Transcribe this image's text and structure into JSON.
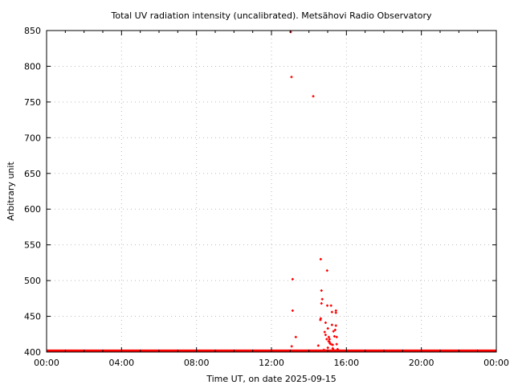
{
  "chart_data": {
    "type": "scatter",
    "title": "Total UV radiation intensity (uncalibrated). Metsähovi Radio Observatory",
    "xlabel": "Time UT, on date 2025-09-15",
    "ylabel": "Arbitrary unit",
    "xlim": [
      0,
      24
    ],
    "ylim": [
      400,
      850
    ],
    "x_units": "hours UT",
    "x_ticks": [
      0,
      4,
      8,
      12,
      16,
      20,
      24
    ],
    "x_tick_labels": [
      "00:00",
      "04:00",
      "08:00",
      "12:00",
      "16:00",
      "20:00",
      "00:00"
    ],
    "y_ticks": [
      400,
      450,
      500,
      550,
      600,
      650,
      700,
      750,
      800,
      850
    ],
    "y_tick_labels": [
      "400",
      "450",
      "500",
      "550",
      "600",
      "650",
      "700",
      "750",
      "800",
      "850"
    ],
    "grid": true,
    "color": "#ff0000",
    "baseline": {
      "value": 401.5,
      "from": 0,
      "to": 24
    },
    "points": [
      [
        13.03,
        848
      ],
      [
        13.07,
        785
      ],
      [
        14.23,
        758
      ],
      [
        14.63,
        530
      ],
      [
        14.97,
        514
      ],
      [
        13.13,
        502
      ],
      [
        14.67,
        486
      ],
      [
        14.71,
        474
      ],
      [
        14.67,
        468
      ],
      [
        14.98,
        465
      ],
      [
        15.18,
        465
      ],
      [
        13.13,
        458
      ],
      [
        15.23,
        456
      ],
      [
        15.44,
        455
      ],
      [
        15.44,
        458
      ],
      [
        14.61,
        445
      ],
      [
        14.63,
        447
      ],
      [
        14.89,
        441
      ],
      [
        15.23,
        438
      ],
      [
        15.44,
        437
      ],
      [
        15.01,
        433
      ],
      [
        15.4,
        431
      ],
      [
        14.84,
        428
      ],
      [
        15.31,
        429
      ],
      [
        13.3,
        421
      ],
      [
        15.06,
        421
      ],
      [
        15.48,
        421
      ],
      [
        15.36,
        422
      ],
      [
        15.1,
        418
      ],
      [
        14.89,
        424
      ],
      [
        15.1,
        414
      ],
      [
        13.08,
        408
      ],
      [
        14.5,
        409
      ],
      [
        15.12,
        412
      ],
      [
        15.18,
        411
      ],
      [
        15.27,
        410
      ],
      [
        15.48,
        411
      ],
      [
        15.01,
        406
      ],
      [
        15.27,
        405
      ],
      [
        14.8,
        403
      ],
      [
        15.53,
        404
      ],
      [
        15.31,
        403
      ],
      [
        15.05,
        415
      ],
      [
        14.95,
        418
      ]
    ]
  }
}
